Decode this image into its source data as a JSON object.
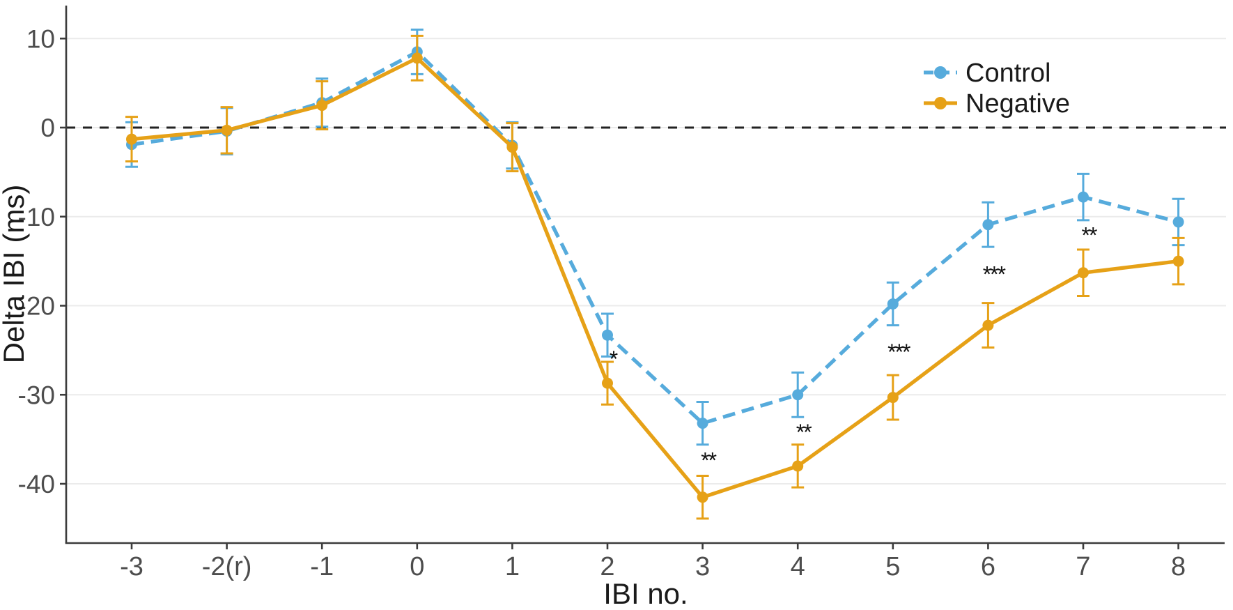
{
  "figure": {
    "kind": "scientific line chart with error bars",
    "background": "#ffffff"
  },
  "chart_data": {
    "type": "line",
    "title": "",
    "xlabel": "IBI no.",
    "ylabel": "Delta IBI (ms)",
    "x_values": [
      -3,
      -2,
      -1,
      0,
      1,
      2,
      3,
      4,
      5,
      6,
      7,
      8
    ],
    "x_tick_labels": [
      "-3",
      "-2(r)",
      "-1",
      "0",
      "1",
      "2",
      "3",
      "4",
      "5",
      "6",
      "7",
      "8"
    ],
    "y_ticks": [
      10,
      0,
      -10,
      -20,
      -30,
      -40
    ],
    "ylim": [
      -46.6,
      13.7
    ],
    "grid": "horizontal-major-only",
    "zero_line": {
      "y": 0,
      "style": "dashed",
      "color": "#222222"
    },
    "legend_position": "top-right-inside",
    "series": [
      {
        "name": "Control",
        "color": "#56ABDC",
        "line_style": "dashed",
        "marker": "circle",
        "values": [
          -1.9,
          -0.4,
          2.8,
          8.5,
          -2.0,
          -23.3,
          -33.2,
          -30.0,
          -19.8,
          -10.9,
          -7.8,
          -10.6
        ],
        "error": [
          2.5,
          2.6,
          2.7,
          2.5,
          2.6,
          2.4,
          2.4,
          2.5,
          2.4,
          2.5,
          2.6,
          2.6
        ]
      },
      {
        "name": "Negative",
        "color": "#E6A117",
        "line_style": "solid",
        "marker": "circle",
        "values": [
          -1.3,
          -0.3,
          2.5,
          7.8,
          -2.2,
          -28.7,
          -41.5,
          -38.0,
          -30.3,
          -22.2,
          -16.3,
          -15.0
        ],
        "error": [
          2.5,
          2.6,
          2.7,
          2.5,
          2.7,
          2.4,
          2.4,
          2.4,
          2.5,
          2.5,
          2.6,
          2.6
        ]
      }
    ],
    "significance_annotations": [
      {
        "x": 2,
        "y": -25.6,
        "label": "*"
      },
      {
        "x": 3,
        "y": -37.0,
        "label": "**"
      },
      {
        "x": 4,
        "y": -33.8,
        "label": "**"
      },
      {
        "x": 5,
        "y": -24.8,
        "label": "***"
      },
      {
        "x": 6,
        "y": -16.1,
        "label": "***"
      },
      {
        "x": 7,
        "y": -11.7,
        "label": "**"
      }
    ]
  },
  "legend": {
    "items": [
      {
        "label": "Control",
        "color": "#56ABDC",
        "line_style": "dashed"
      },
      {
        "label": "Negative",
        "color": "#E6A117",
        "line_style": "solid"
      }
    ]
  },
  "colors": {
    "control": "#56ABDC",
    "negative": "#E6A117",
    "gridline": "#ebebeb",
    "axis": "#3c3c3c",
    "tick_text": "#4d4d4d",
    "title_text": "#1a1a1a",
    "annotation": "#111111"
  }
}
